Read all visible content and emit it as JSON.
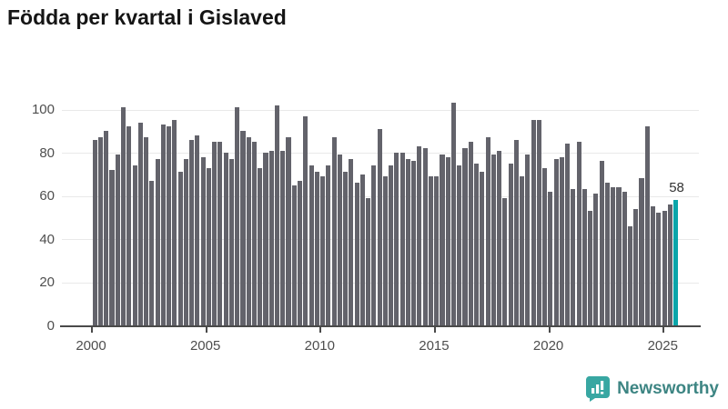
{
  "title": "Födda per kvartal i Gislaved",
  "annotation": {
    "label": "58"
  },
  "logo": {
    "text": "Newsworthy",
    "icon": "bar-chart-bubble-icon"
  },
  "colors": {
    "bar": "#63636b",
    "highlight": "#0aa5a9",
    "grid": "#e9e9e9",
    "axis": "#4a4a4a",
    "axis_text": "#4e4e4e",
    "title_text": "#151515",
    "annotation_text": "#333333",
    "logo_icon": "#38a7a2",
    "logo_text": "#3d8583"
  },
  "chart_data": {
    "type": "bar",
    "title": "Födda per kvartal i Gislaved",
    "frequency": "quarterly",
    "x_start": "2000-Q1",
    "x_end": "2025-Q3",
    "values": [
      86,
      87,
      90,
      72,
      79,
      101,
      92,
      74,
      94,
      87,
      67,
      77,
      93,
      92,
      95,
      71,
      77,
      86,
      88,
      78,
      73,
      85,
      85,
      80,
      77,
      101,
      90,
      87,
      85,
      73,
      80,
      81,
      102,
      81,
      87,
      65,
      67,
      97,
      74,
      71,
      69,
      74,
      87,
      79,
      71,
      77,
      66,
      70,
      59,
      74,
      91,
      69,
      74,
      80,
      80,
      77,
      76,
      83,
      82,
      69,
      69,
      79,
      78,
      103,
      74,
      82,
      85,
      75,
      71,
      87,
      79,
      81,
      59,
      75,
      86,
      69,
      79,
      95,
      95,
      73,
      62,
      77,
      78,
      84,
      63,
      85,
      63,
      53,
      61,
      76,
      66,
      64,
      64,
      62,
      46,
      54,
      68,
      92,
      55,
      52,
      53,
      56,
      58
    ],
    "highlight_index": 102,
    "highlight_value": 58,
    "xlabel": "",
    "ylabel": "",
    "ylim": [
      0,
      100
    ],
    "y_ticks": [
      0,
      20,
      40,
      60,
      80,
      100
    ],
    "x_ticks": [
      2000,
      2005,
      2010,
      2015,
      2020,
      2025
    ],
    "grid": "horizontal",
    "legend": "none"
  }
}
